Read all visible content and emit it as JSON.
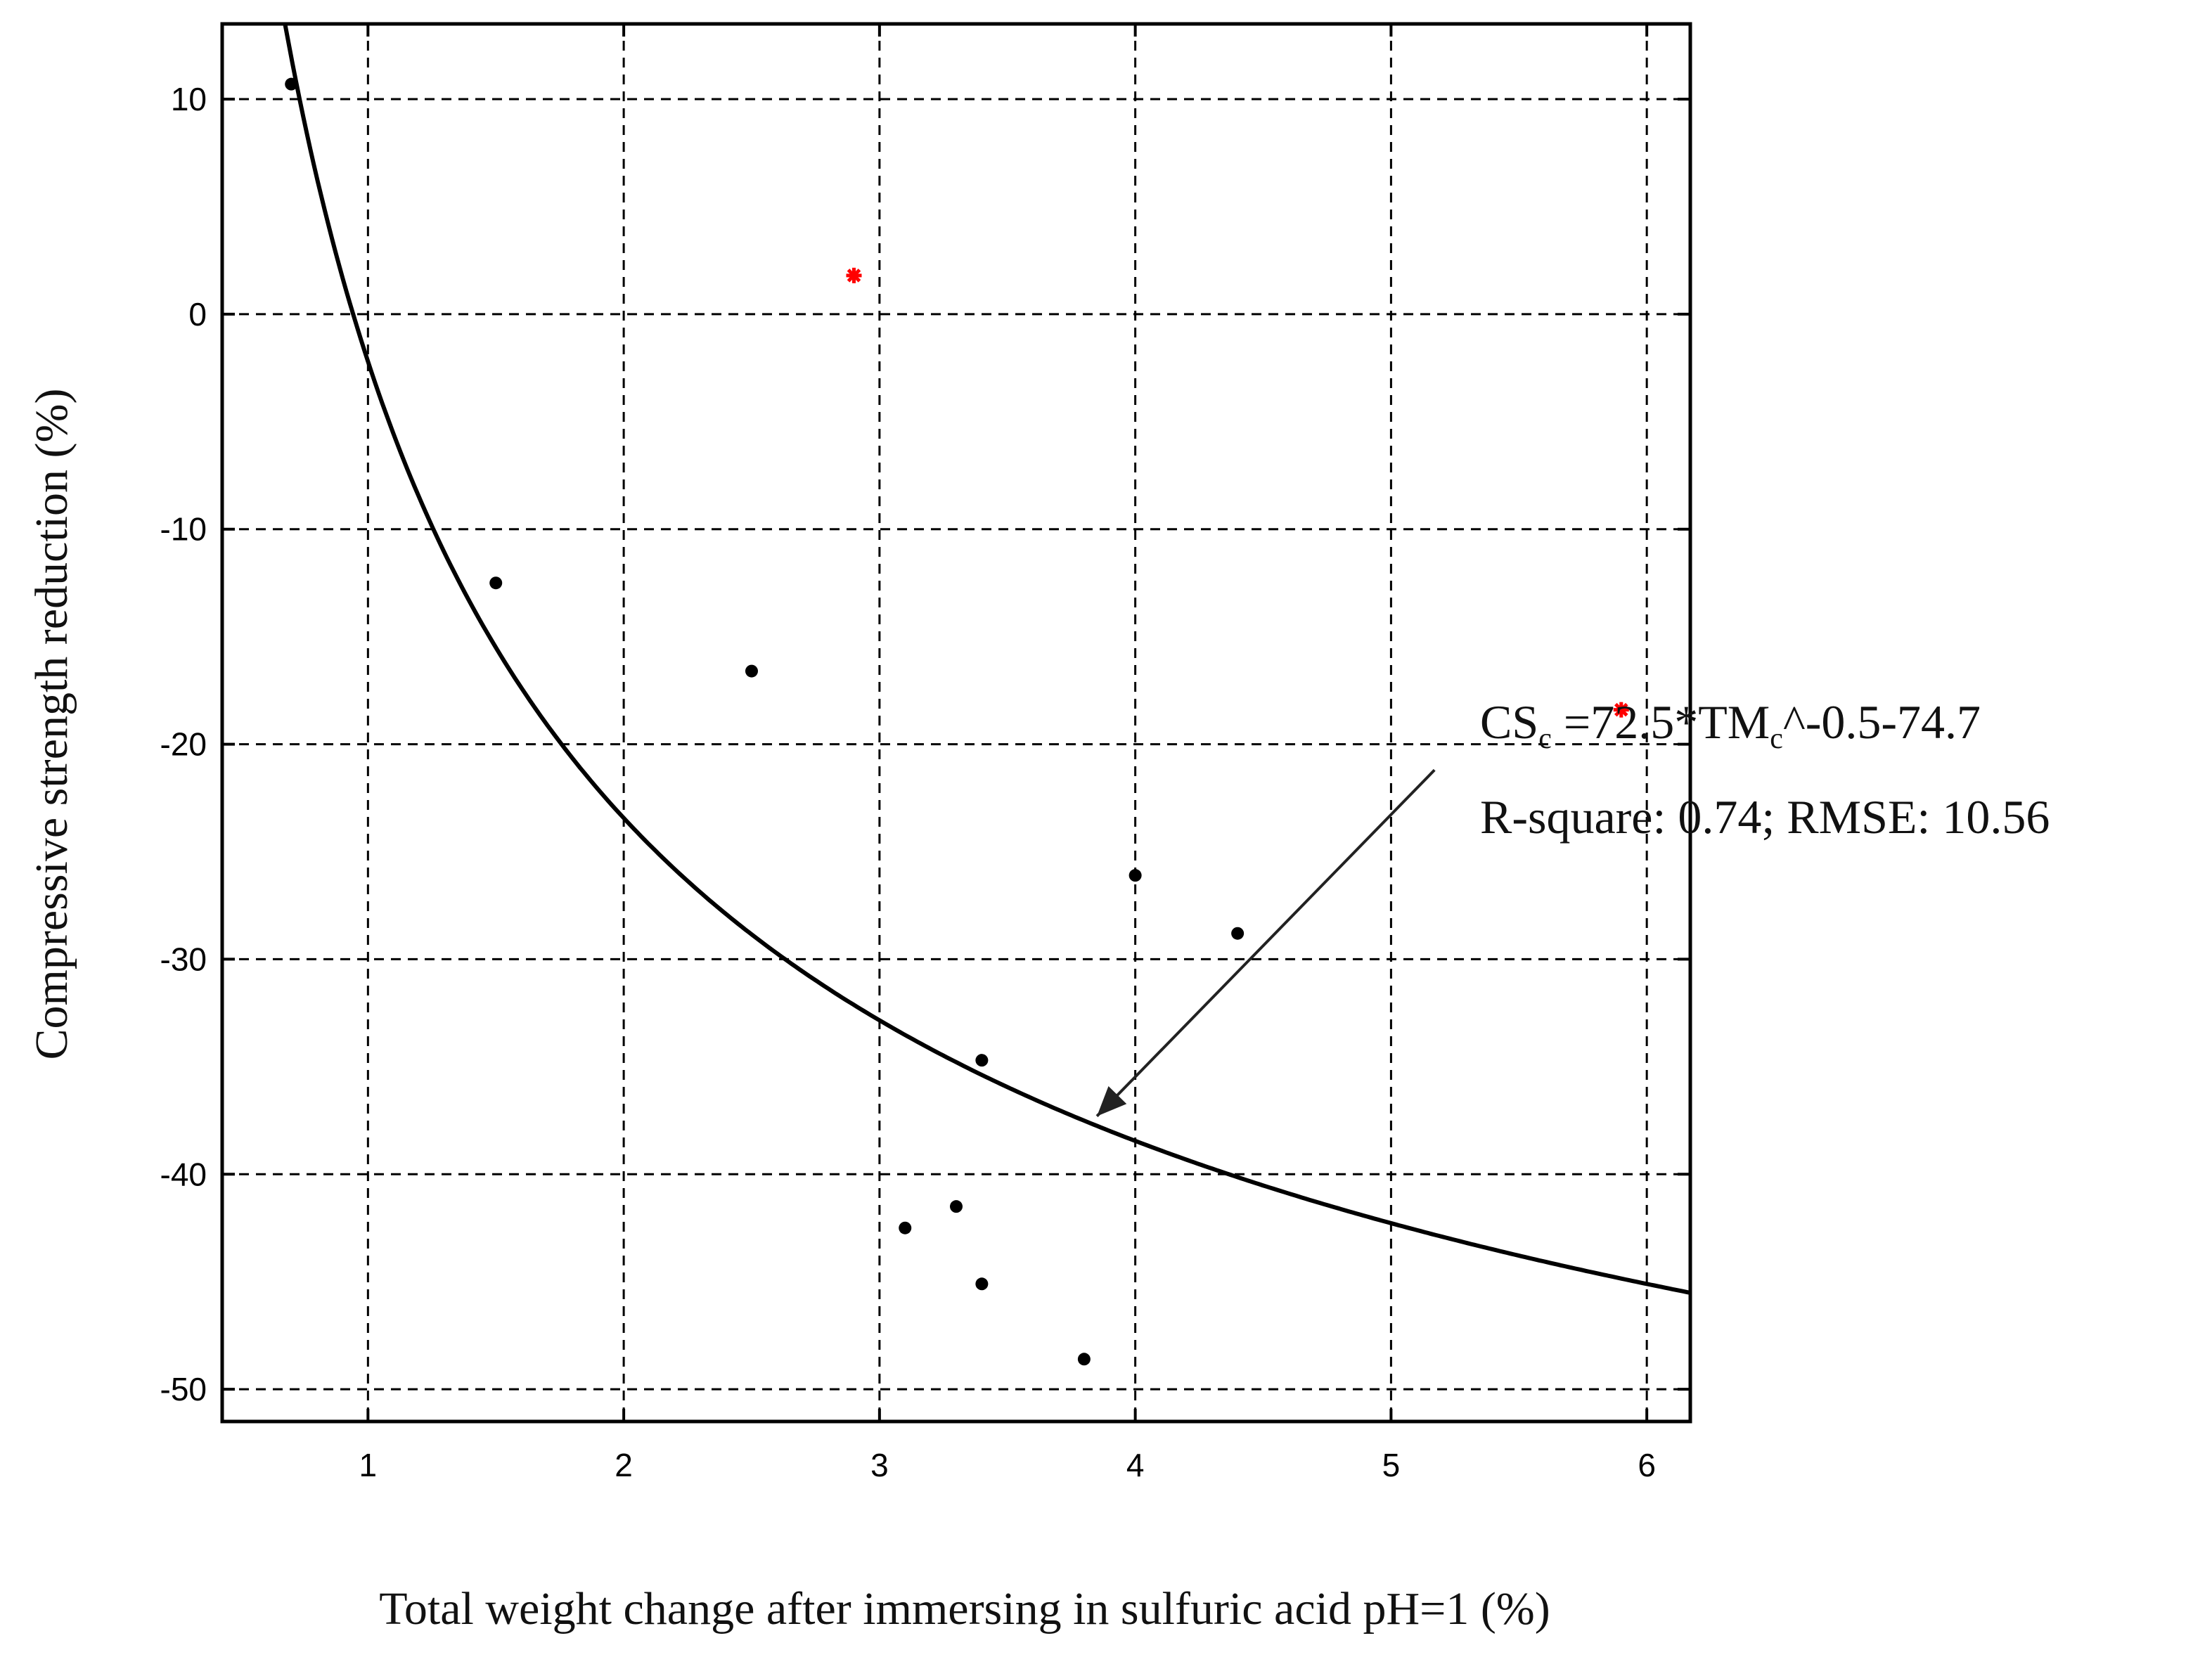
{
  "chart_data": {
    "type": "scatter",
    "xlabel": "Total weight change after immersing in sulfuric acid pH=1 (%)",
    "ylabel": "Compressive strength reduction (%)",
    "xlim": [
      0.43,
      6.17
    ],
    "ylim": [
      -51.5,
      13.5
    ],
    "x_ticks": [
      1,
      2,
      3,
      4,
      5,
      6
    ],
    "y_ticks": [
      10,
      0,
      -10,
      -20,
      -30,
      -40,
      -50
    ],
    "x_tick_labels": [
      "1",
      "2",
      "3",
      "4",
      "5",
      "6"
    ],
    "y_tick_labels": [
      "10",
      "0",
      "-10",
      "-20",
      "-30",
      "-40",
      "-50"
    ],
    "grid": true,
    "series": [
      {
        "marker": "dot",
        "color": "#000000",
        "points": [
          [
            0.7,
            10.7
          ],
          [
            1.5,
            -12.5
          ],
          [
            2.5,
            -16.6
          ],
          [
            3.1,
            -42.5
          ],
          [
            3.3,
            -41.5
          ],
          [
            3.4,
            -34.7
          ],
          [
            3.4,
            -45.1
          ],
          [
            3.8,
            -48.6
          ],
          [
            4.0,
            -26.1
          ],
          [
            4.4,
            -28.8
          ]
        ]
      },
      {
        "marker": "asterisk",
        "color": "#ff0000",
        "points": [
          [
            2.9,
            1.8
          ],
          [
            5.9,
            -18.4
          ]
        ]
      }
    ],
    "fit": {
      "a": 72.5,
      "b": -0.5,
      "c": -74.7,
      "color": "#000000"
    },
    "annotation": {
      "equation": {
        "cs": "CS",
        "cs_sub": "c",
        "mid": " =72.5*TM",
        "tm_sub": "c",
        "tail": "^-0.5-74.7"
      },
      "stats": "R-square: 0.74; RMSE: 10.56",
      "arrow_tip": [
        3.85,
        -37.3
      ],
      "arrow_tail": [
        5.17,
        -21.2
      ]
    }
  }
}
